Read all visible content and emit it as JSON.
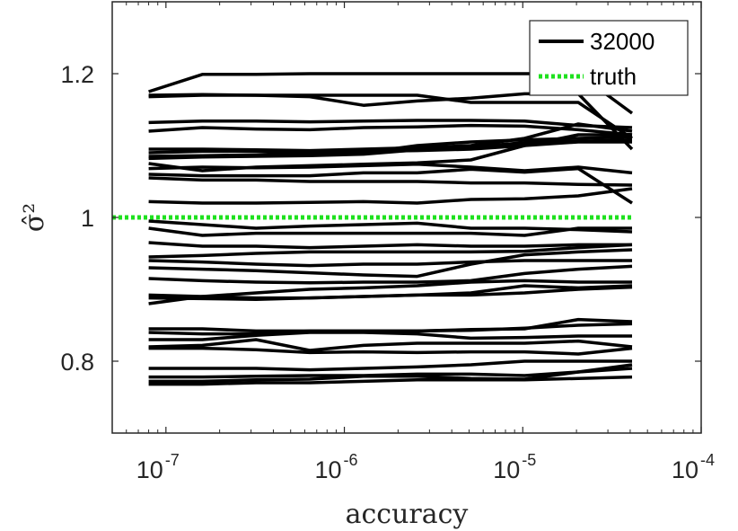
{
  "chart_data": {
    "type": "line",
    "xlabel": "accuracy",
    "ylabel": "σ̂²",
    "x_scale": "log",
    "xlim": [
      5e-08,
      0.0001
    ],
    "ylim": [
      0.7,
      1.3
    ],
    "grid": false,
    "legend_position": "top-right",
    "x_ticks": [
      {
        "value": 1e-07,
        "base": "10",
        "exp": "-7"
      },
      {
        "value": 1e-06,
        "base": "10",
        "exp": "-6"
      },
      {
        "value": 1e-05,
        "base": "10",
        "exp": "-5"
      },
      {
        "value": 0.0001,
        "base": "10",
        "exp": "-4"
      }
    ],
    "y_ticks": [
      {
        "value": 0.8,
        "label": "0.8"
      },
      {
        "value": 1.0,
        "label": "1"
      },
      {
        "value": 1.2,
        "label": "1.2"
      }
    ],
    "legend": [
      {
        "label": "32000",
        "style": "solid",
        "color": "#000000"
      },
      {
        "label": "truth",
        "style": "dotted",
        "color": "#1ee11e"
      }
    ],
    "x": [
      8e-08,
      1.6e-07,
      3.2e-07,
      6.4e-07,
      1.28e-06,
      2.56e-06,
      5.12e-06,
      1.024e-05,
      2.048e-05,
      4.096e-05
    ],
    "series": [
      {
        "values": [
          1.175,
          1.199,
          1.199,
          1.2,
          1.2,
          1.2,
          1.2,
          1.2,
          1.2,
          1.145
        ]
      },
      {
        "values": [
          1.168,
          1.17,
          1.17,
          1.168,
          1.156,
          1.162,
          1.166,
          1.172,
          1.172,
          1.095
        ]
      },
      {
        "values": [
          1.17,
          1.171,
          1.17,
          1.17,
          1.17,
          1.17,
          1.16,
          1.16,
          1.16,
          1.11
        ]
      },
      {
        "values": [
          1.132,
          1.134,
          1.134,
          1.133,
          1.134,
          1.135,
          1.135,
          1.134,
          1.128,
          1.125
        ]
      },
      {
        "values": [
          1.12,
          1.125,
          1.123,
          1.122,
          1.125,
          1.126,
          1.128,
          1.127,
          1.122,
          1.115
        ]
      },
      {
        "values": [
          1.095,
          1.095,
          1.094,
          1.093,
          1.095,
          1.097,
          1.1,
          1.11,
          1.13,
          1.12
        ]
      },
      {
        "values": [
          1.09,
          1.092,
          1.092,
          1.09,
          1.092,
          1.093,
          1.095,
          1.1,
          1.115,
          1.115
        ]
      },
      {
        "values": [
          1.085,
          1.086,
          1.087,
          1.088,
          1.09,
          1.1,
          1.105,
          1.108,
          1.11,
          1.112
        ]
      },
      {
        "values": [
          1.082,
          1.084,
          1.085,
          1.086,
          1.088,
          1.094,
          1.098,
          1.104,
          1.106,
          1.108
        ]
      },
      {
        "values": [
          1.075,
          1.065,
          1.07,
          1.072,
          1.074,
          1.076,
          1.08,
          1.1,
          1.105,
          1.105
        ]
      },
      {
        "values": [
          1.068,
          1.07,
          1.069,
          1.07,
          1.072,
          1.074,
          1.07,
          1.065,
          1.07,
          1.062
        ]
      },
      {
        "values": [
          1.06,
          1.058,
          1.058,
          1.058,
          1.062,
          1.062,
          1.067,
          1.063,
          1.068,
          1.02
        ]
      },
      {
        "values": [
          1.055,
          1.052,
          1.052,
          1.05,
          1.05,
          1.05,
          1.048,
          1.048,
          1.046,
          1.045
        ]
      },
      {
        "values": [
          1.022,
          1.02,
          1.02,
          1.021,
          1.022,
          1.02,
          1.025,
          1.026,
          1.03,
          1.04
        ]
      },
      {
        "values": [
          0.995,
          0.99,
          0.985,
          0.988,
          0.99,
          0.992,
          0.985,
          0.985,
          0.983,
          0.98
        ]
      },
      {
        "values": [
          0.985,
          0.975,
          0.978,
          0.978,
          0.978,
          0.978,
          0.978,
          0.975,
          0.985,
          0.985
        ]
      },
      {
        "values": [
          0.965,
          0.96,
          0.96,
          0.958,
          0.96,
          0.962,
          0.96,
          0.96,
          0.962,
          0.962
        ]
      },
      {
        "values": [
          0.945,
          0.947,
          0.95,
          0.952,
          0.952,
          0.952,
          0.952,
          0.953,
          0.958,
          0.962
        ]
      },
      {
        "values": [
          0.94,
          0.938,
          0.935,
          0.933,
          0.935,
          0.935,
          0.938,
          0.94,
          0.94,
          0.94
        ]
      },
      {
        "values": [
          0.93,
          0.928,
          0.926,
          0.923,
          0.92,
          0.918,
          0.935,
          0.948,
          0.952,
          0.955
        ]
      },
      {
        "values": [
          0.915,
          0.912,
          0.91,
          0.909,
          0.91,
          0.91,
          0.912,
          0.922,
          0.928,
          0.932
        ]
      },
      {
        "values": [
          0.88,
          0.89,
          0.895,
          0.9,
          0.902,
          0.905,
          0.91,
          0.912,
          0.91,
          0.91
        ]
      },
      {
        "values": [
          0.892,
          0.89,
          0.888,
          0.888,
          0.89,
          0.892,
          0.895,
          0.905,
          0.902,
          0.905
        ]
      },
      {
        "values": [
          0.888,
          0.887,
          0.886,
          0.888,
          0.89,
          0.892,
          0.892,
          0.895,
          0.9,
          0.903
        ]
      },
      {
        "values": [
          0.845,
          0.845,
          0.842,
          0.842,
          0.842,
          0.842,
          0.844,
          0.845,
          0.858,
          0.855
        ]
      },
      {
        "values": [
          0.84,
          0.838,
          0.838,
          0.842,
          0.842,
          0.842,
          0.843,
          0.846,
          0.85,
          0.852
        ]
      },
      {
        "values": [
          0.83,
          0.83,
          0.836,
          0.84,
          0.84,
          0.838,
          0.832,
          0.833,
          0.835,
          0.835
        ]
      },
      {
        "values": [
          0.82,
          0.822,
          0.83,
          0.815,
          0.822,
          0.825,
          0.825,
          0.825,
          0.828,
          0.82
        ]
      },
      {
        "values": [
          0.818,
          0.818,
          0.816,
          0.812,
          0.813,
          0.812,
          0.813,
          0.813,
          0.81,
          0.818
        ]
      },
      {
        "values": [
          0.79,
          0.79,
          0.79,
          0.788,
          0.79,
          0.792,
          0.795,
          0.8,
          0.8,
          0.8
        ]
      },
      {
        "values": [
          0.778,
          0.778,
          0.779,
          0.78,
          0.78,
          0.782,
          0.782,
          0.78,
          0.785,
          0.79
        ]
      },
      {
        "values": [
          0.772,
          0.772,
          0.774,
          0.775,
          0.779,
          0.779,
          0.776,
          0.775,
          0.785,
          0.795
        ]
      },
      {
        "values": [
          0.768,
          0.768,
          0.77,
          0.77,
          0.772,
          0.774,
          0.774,
          0.774,
          0.776,
          0.778
        ]
      }
    ],
    "truth": {
      "y": 1.0,
      "xlim": [
        5e-08,
        4.096e-05
      ]
    }
  }
}
